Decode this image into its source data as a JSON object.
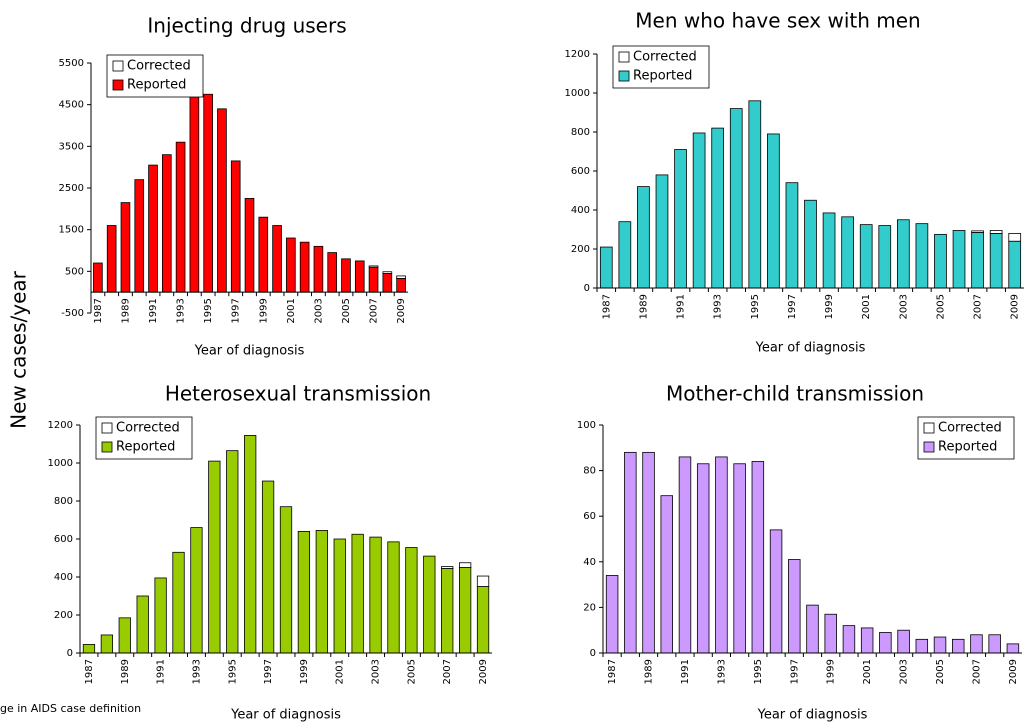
{
  "ylabel": "New cases/year",
  "footnote": "ge in AIDS case definition",
  "chart_data": [
    {
      "type": "bar",
      "stacked": true,
      "title": "Injecting drug users",
      "xlabel": "Year of diagnosis",
      "categories": [
        "1987",
        null,
        "1989",
        null,
        "1991",
        null,
        "1993",
        null,
        "1995",
        null,
        "1997",
        null,
        "1999",
        null,
        "2001",
        null,
        "2003",
        null,
        "2005",
        null,
        "2007",
        null,
        "2009"
      ],
      "series": [
        {
          "name": "Reported",
          "color": "#ff0000",
          "values": [
            700,
            1600,
            2150,
            2700,
            3050,
            3300,
            3600,
            5100,
            4750,
            4400,
            3150,
            2250,
            1800,
            1600,
            1300,
            1200,
            1100,
            950,
            800,
            750,
            600,
            450,
            330
          ]
        },
        {
          "name": "Corrected",
          "color": "#ffffff",
          "values": [
            0,
            0,
            0,
            0,
            0,
            0,
            0,
            0,
            0,
            0,
            0,
            0,
            0,
            0,
            0,
            0,
            0,
            0,
            0,
            0,
            30,
            40,
            60
          ]
        }
      ],
      "ylim": [
        -500,
        5500
      ],
      "yticks": [
        -500,
        500,
        1500,
        2500,
        3500,
        4500,
        5500
      ],
      "legend": "upper left"
    },
    {
      "type": "bar",
      "stacked": true,
      "title": "Men who have sex with men",
      "xlabel": "Year of diagnosis",
      "categories": [
        "1987",
        null,
        "1989",
        null,
        "1991",
        null,
        "1993",
        null,
        "1995",
        null,
        "1997",
        null,
        "1999",
        null,
        "2001",
        null,
        "2003",
        null,
        "2005",
        null,
        "2007",
        null,
        "2009"
      ],
      "series": [
        {
          "name": "Reported",
          "color": "#33cccc",
          "values": [
            210,
            340,
            520,
            580,
            710,
            795,
            820,
            920,
            960,
            790,
            540,
            450,
            385,
            365,
            325,
            320,
            350,
            330,
            275,
            295,
            285,
            280,
            240
          ]
        },
        {
          "name": "Corrected",
          "color": "#ffffff",
          "values": [
            0,
            0,
            0,
            0,
            0,
            0,
            0,
            0,
            0,
            0,
            0,
            0,
            0,
            0,
            0,
            0,
            0,
            0,
            0,
            0,
            8,
            15,
            40
          ]
        }
      ],
      "ylim": [
        0,
        1200
      ],
      "yticks": [
        0,
        200,
        400,
        600,
        800,
        1000,
        1200
      ],
      "legend": "upper left"
    },
    {
      "type": "bar",
      "stacked": true,
      "title": "Heterosexual transmission",
      "xlabel": "Year of diagnosis",
      "categories": [
        "1987",
        null,
        "1989",
        null,
        "1991",
        null,
        "1993",
        null,
        "1995",
        null,
        "1997",
        null,
        "1999",
        null,
        "2001",
        null,
        "2003",
        null,
        "2005",
        null,
        "2007",
        null,
        "2009"
      ],
      "series": [
        {
          "name": "Reported",
          "color": "#99cc00",
          "values": [
            45,
            95,
            185,
            300,
            395,
            530,
            660,
            1010,
            1065,
            1145,
            905,
            770,
            640,
            645,
            600,
            625,
            610,
            585,
            555,
            510,
            445,
            450,
            350
          ]
        },
        {
          "name": "Corrected",
          "color": "#ffffff",
          "values": [
            0,
            0,
            0,
            0,
            0,
            0,
            0,
            0,
            0,
            0,
            0,
            0,
            0,
            0,
            0,
            0,
            0,
            0,
            0,
            0,
            10,
            25,
            55
          ]
        }
      ],
      "ylim": [
        0,
        1200
      ],
      "yticks": [
        0,
        200,
        400,
        600,
        800,
        1000,
        1200
      ],
      "legend": "upper left"
    },
    {
      "type": "bar",
      "stacked": true,
      "title": "Mother-child transmission",
      "xlabel": "Year of diagnosis",
      "categories": [
        "1987",
        null,
        "1989",
        null,
        "1991",
        null,
        "1993",
        null,
        "1995",
        null,
        "1997",
        null,
        "1999",
        null,
        "2001",
        null,
        "2003",
        null,
        "2005",
        null,
        "2007",
        null,
        "2009"
      ],
      "series": [
        {
          "name": "Reported",
          "color": "#cc99ff",
          "values": [
            34,
            88,
            88,
            69,
            86,
            83,
            86,
            83,
            84,
            54,
            41,
            21,
            17,
            12,
            11,
            9,
            10,
            6,
            7,
            6,
            8,
            8,
            4
          ]
        },
        {
          "name": "Corrected",
          "color": "#ffffff",
          "values": [
            0,
            0,
            0,
            0,
            0,
            0,
            0,
            0,
            0,
            0,
            0,
            0,
            0,
            0,
            0,
            0,
            0,
            0,
            0,
            0,
            0,
            0,
            0
          ]
        }
      ],
      "ylim": [
        0,
        100
      ],
      "yticks": [
        0,
        20,
        40,
        60,
        80,
        100
      ],
      "legend": "upper right"
    }
  ]
}
